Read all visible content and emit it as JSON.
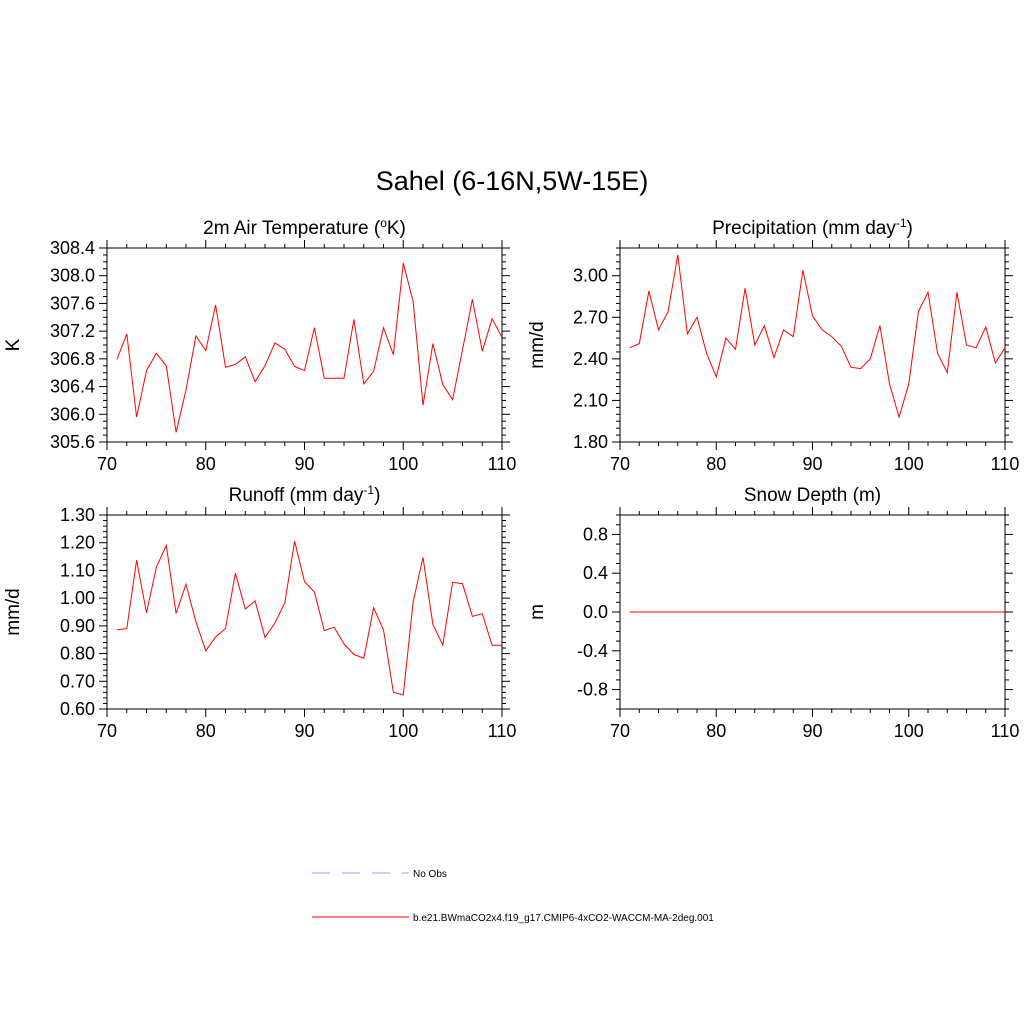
{
  "title": "Sahel (6-16N,5W-15E)",
  "chart_data": [
    {
      "type": "line",
      "title": "2m Air Temperature (",
      "title_sup": "o",
      "title_after": "K)",
      "ylabel": "K",
      "xlim": [
        70,
        110
      ],
      "ylim": [
        305.6,
        308.4
      ],
      "xticks": [
        70,
        80,
        90,
        100,
        110
      ],
      "yticks": [
        305.6,
        306.0,
        306.4,
        306.8,
        307.2,
        307.6,
        308.0,
        308.4
      ],
      "ytick_labels": [
        "305.6",
        "306.0",
        "306.4",
        "306.8",
        "307.2",
        "307.6",
        "308.0",
        "308.4"
      ],
      "yminor": 0.1,
      "xminor": 2,
      "color": "#ff0000",
      "x": [
        71,
        72,
        73,
        74,
        75,
        76,
        77,
        78,
        79,
        80,
        81,
        82,
        83,
        84,
        85,
        86,
        87,
        88,
        89,
        90,
        91,
        92,
        93,
        94,
        95,
        96,
        97,
        98,
        99,
        100,
        101,
        102,
        103,
        104,
        105,
        106,
        107,
        108,
        109,
        110
      ],
      "y": [
        306.79,
        307.16,
        305.96,
        306.63,
        306.88,
        306.7,
        305.74,
        306.35,
        307.13,
        306.92,
        307.58,
        306.68,
        306.72,
        306.83,
        306.47,
        306.7,
        307.03,
        306.94,
        306.69,
        306.63,
        307.25,
        306.52,
        306.52,
        306.52,
        307.37,
        306.44,
        306.62,
        307.25,
        306.86,
        308.18,
        307.63,
        306.13,
        307.02,
        306.43,
        306.21,
        306.93,
        307.66,
        306.91,
        307.38,
        307.11
      ]
    },
    {
      "type": "line",
      "title": "Precipitation (mm day",
      "title_sup": "-1",
      "title_after": ")",
      "ylabel": "mm/d",
      "xlim": [
        70,
        110
      ],
      "ylim": [
        1.8,
        3.2
      ],
      "xticks": [
        70,
        80,
        90,
        100,
        110
      ],
      "yticks": [
        1.8,
        2.1,
        2.4,
        2.7,
        3.0
      ],
      "ytick_labels": [
        "1.80",
        "2.10",
        "2.40",
        "2.70",
        "3.00"
      ],
      "yminor": 0.05,
      "xminor": 2,
      "color": "#ff0000",
      "x": [
        71,
        72,
        73,
        74,
        75,
        76,
        77,
        78,
        79,
        80,
        81,
        82,
        83,
        84,
        85,
        86,
        87,
        88,
        89,
        90,
        91,
        92,
        93,
        94,
        95,
        96,
        97,
        98,
        99,
        100,
        101,
        102,
        103,
        104,
        105,
        106,
        107,
        108,
        109,
        110
      ],
      "y": [
        2.48,
        2.51,
        2.89,
        2.61,
        2.74,
        3.15,
        2.58,
        2.7,
        2.44,
        2.27,
        2.55,
        2.47,
        2.91,
        2.5,
        2.64,
        2.41,
        2.61,
        2.56,
        3.04,
        2.71,
        2.61,
        2.56,
        2.49,
        2.34,
        2.33,
        2.4,
        2.64,
        2.22,
        1.98,
        2.22,
        2.74,
        2.88,
        2.44,
        2.3,
        2.88,
        2.5,
        2.48,
        2.63,
        2.37,
        2.48
      ]
    },
    {
      "type": "line",
      "title": "Runoff (mm day",
      "title_sup": "-1",
      "title_after": ")",
      "ylabel": "mm/d",
      "xlim": [
        70,
        110
      ],
      "ylim": [
        0.6,
        1.3
      ],
      "xticks": [
        70,
        80,
        90,
        100,
        110
      ],
      "yticks": [
        0.6,
        0.7,
        0.8,
        0.9,
        1.0,
        1.1,
        1.2,
        1.3
      ],
      "ytick_labels": [
        "0.60",
        "0.70",
        "0.80",
        "0.90",
        "1.00",
        "1.10",
        "1.20",
        "1.30"
      ],
      "yminor": 0.02,
      "xminor": 2,
      "color": "#ff0000",
      "x": [
        71,
        72,
        73,
        74,
        75,
        76,
        77,
        78,
        79,
        80,
        81,
        82,
        83,
        84,
        85,
        86,
        87,
        88,
        89,
        90,
        91,
        92,
        93,
        94,
        95,
        96,
        97,
        98,
        99,
        100,
        101,
        102,
        103,
        104,
        105,
        106,
        107,
        108,
        109,
        110
      ],
      "y": [
        0.886,
        0.89,
        1.137,
        0.947,
        1.112,
        1.19,
        0.945,
        1.05,
        0.915,
        0.81,
        0.86,
        0.89,
        1.09,
        0.961,
        0.99,
        0.858,
        0.91,
        0.983,
        1.205,
        1.06,
        1.022,
        0.883,
        0.895,
        0.835,
        0.797,
        0.783,
        0.965,
        0.885,
        0.66,
        0.651,
        0.985,
        1.147,
        0.905,
        0.831,
        1.057,
        1.052,
        0.934,
        0.944,
        0.83,
        0.83
      ]
    },
    {
      "type": "line",
      "title": "Snow Depth (m)",
      "title_sup": "",
      "title_after": "",
      "ylabel": "m",
      "xlim": [
        70,
        110
      ],
      "ylim": [
        -1.0,
        1.0
      ],
      "xticks": [
        70,
        80,
        90,
        100,
        110
      ],
      "yticks": [
        -0.8,
        -0.4,
        0.0,
        0.4,
        0.8
      ],
      "ytick_labels": [
        "-0.8",
        "-0.4",
        "0.0",
        "0.4",
        "0.8"
      ],
      "yminor": 0.1,
      "xminor": 2,
      "color": "#ff0000",
      "x": [
        71,
        110
      ],
      "y": [
        0.0,
        0.0
      ]
    }
  ],
  "legend": [
    {
      "label": "No Obs",
      "color": "#9999ff",
      "dash": "dashed"
    },
    {
      "label": "b.e21.BWmaCO2x4.f19_g17.CMIP6-4xCO2-WACCM-MA-2deg.001",
      "color": "#ff0000",
      "dash": "solid"
    }
  ]
}
